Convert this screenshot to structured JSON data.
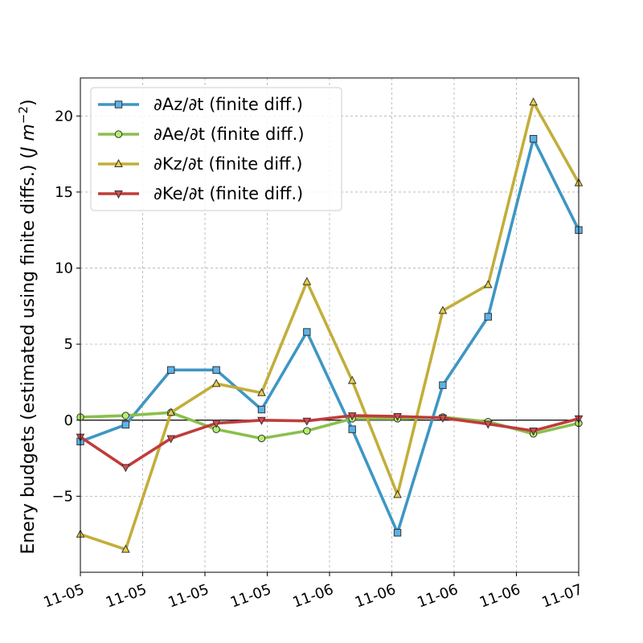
{
  "chart_data": {
    "type": "line",
    "x": [
      "11-05",
      "11-05",
      "11-05",
      "11-05",
      "11-05",
      "11-05",
      "11-06",
      "11-06",
      "11-06",
      "11-06",
      "11-06",
      "11-07"
    ],
    "x_tick_labels": [
      "11-05",
      "11-05",
      "11-05",
      "11-05",
      "11-06",
      "11-06",
      "11-06",
      "11-06",
      "11-07"
    ],
    "ylabel": "Enery budgets (estimated using finite diffs.) (",
    "ylabel_unit": "J m",
    "ylabel_exp": "−2",
    "ylabel_close": ")",
    "ylim": [
      -10,
      22.5
    ],
    "y_ticks": [
      -5,
      0,
      5,
      10,
      15,
      20
    ],
    "y_tick_labels": [
      "−5",
      "0",
      "5",
      "10",
      "15",
      "20"
    ],
    "grid": true,
    "legend_position": "upper-left",
    "zero_line": true,
    "series": [
      {
        "name": "∂Az/∂t (finite diff.)",
        "color": "#3e96c4",
        "marker_fill": "#5ab4e8",
        "marker": "square",
        "values": [
          -1.4,
          -0.3,
          3.3,
          3.3,
          0.7,
          5.8,
          -0.6,
          -7.4,
          2.3,
          6.8,
          18.5,
          12.5
        ]
      },
      {
        "name": "∂Ae/∂t (finite diff.)",
        "color": "#8bbf4b",
        "marker_fill": "#b3f06b",
        "marker": "circle",
        "values": [
          0.2,
          0.3,
          0.5,
          -0.6,
          -1.2,
          -0.7,
          0.1,
          0.1,
          0.2,
          -0.1,
          -0.9,
          -0.2
        ]
      },
      {
        "name": "∂Kz/∂t (finite diff.)",
        "color": "#c2ae3a",
        "marker_fill": "#e6d14a",
        "marker": "triangle-up",
        "values": [
          -7.5,
          -8.5,
          0.5,
          2.4,
          1.8,
          9.1,
          2.6,
          -4.9,
          7.2,
          8.9,
          20.9,
          15.6
        ]
      },
      {
        "name": "∂Ke/∂t (finite diff.)",
        "color": "#c03c3c",
        "marker_fill": "#e04848",
        "marker": "triangle-down",
        "values": [
          -1.1,
          -3.1,
          -1.2,
          -0.2,
          0.0,
          -0.05,
          0.3,
          0.25,
          0.15,
          -0.25,
          -0.7,
          0.1
        ]
      }
    ]
  }
}
